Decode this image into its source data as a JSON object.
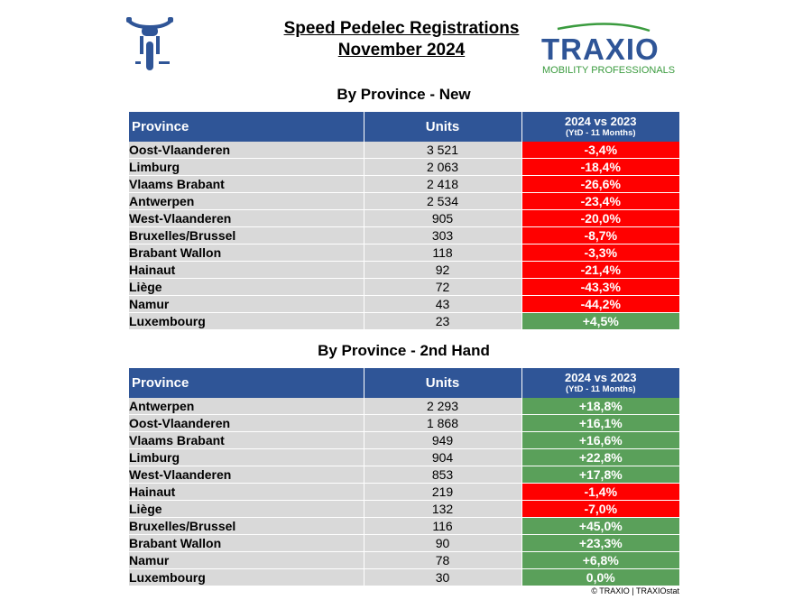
{
  "header": {
    "title_line1": "Speed Pedelec Registrations",
    "title_line2": "November 2024"
  },
  "logo": {
    "name": "TRAXIO",
    "tagline": "MOBILITY PROFESSIONALS"
  },
  "icon": {
    "name": "speed-pedelec-icon",
    "color": "#2f5597"
  },
  "colors": {
    "header_bg": "#2f5597",
    "cell_bg": "#d9d9d9",
    "negative": "#ff0000",
    "positive": "#5aa05a",
    "logo_green": "#3a9b3e"
  },
  "new_table": {
    "title": "By Province - New",
    "col_province": "Province",
    "col_units": "Units",
    "col_change": "2024 vs 2023",
    "col_change_sub": "(YtD - 11 Months)",
    "rows": [
      {
        "province": "Oost-Vlaanderen",
        "units": "3 521",
        "change": "-3,4%",
        "trend": "neg"
      },
      {
        "province": "Limburg",
        "units": "2 063",
        "change": "-18,4%",
        "trend": "neg"
      },
      {
        "province": "Vlaams Brabant",
        "units": "2 418",
        "change": "-26,6%",
        "trend": "neg"
      },
      {
        "province": "Antwerpen",
        "units": "2 534",
        "change": "-23,4%",
        "trend": "neg"
      },
      {
        "province": "West-Vlaanderen",
        "units": "905",
        "change": "-20,0%",
        "trend": "neg"
      },
      {
        "province": "Bruxelles/Brussel",
        "units": "303",
        "change": "-8,7%",
        "trend": "neg"
      },
      {
        "province": "Brabant Wallon",
        "units": "118",
        "change": "-3,3%",
        "trend": "neg"
      },
      {
        "province": "Hainaut",
        "units": "92",
        "change": "-21,4%",
        "trend": "neg"
      },
      {
        "province": "Liège",
        "units": "72",
        "change": "-43,3%",
        "trend": "neg"
      },
      {
        "province": "Namur",
        "units": "43",
        "change": "-44,2%",
        "trend": "neg"
      },
      {
        "province": "Luxembourg",
        "units": "23",
        "change": "+4,5%",
        "trend": "pos"
      }
    ]
  },
  "used_table": {
    "title": "By Province - 2nd Hand",
    "col_province": "Province",
    "col_units": "Units",
    "col_change": "2024 vs 2023",
    "col_change_sub": "(YtD - 11 Months)",
    "rows": [
      {
        "province": "Antwerpen",
        "units": "2 293",
        "change": "+18,8%",
        "trend": "pos"
      },
      {
        "province": "Oost-Vlaanderen",
        "units": "1 868",
        "change": "+16,1%",
        "trend": "pos"
      },
      {
        "province": "Vlaams Brabant",
        "units": "949",
        "change": "+16,6%",
        "trend": "pos"
      },
      {
        "province": "Limburg",
        "units": "904",
        "change": "+22,8%",
        "trend": "pos"
      },
      {
        "province": "West-Vlaanderen",
        "units": "853",
        "change": "+17,8%",
        "trend": "pos"
      },
      {
        "province": "Hainaut",
        "units": "219",
        "change": "-1,4%",
        "trend": "neg"
      },
      {
        "province": "Liège",
        "units": "132",
        "change": "-7,0%",
        "trend": "neg"
      },
      {
        "province": "Bruxelles/Brussel",
        "units": "116",
        "change": "+45,0%",
        "trend": "pos"
      },
      {
        "province": "Brabant Wallon",
        "units": "90",
        "change": "+23,3%",
        "trend": "pos"
      },
      {
        "province": "Namur",
        "units": "78",
        "change": "+6,8%",
        "trend": "pos"
      },
      {
        "province": "Luxembourg",
        "units": "30",
        "change": "0,0%",
        "trend": "pos"
      }
    ]
  },
  "footer": {
    "copyright": "© TRAXIO | TRAXIOstat"
  }
}
